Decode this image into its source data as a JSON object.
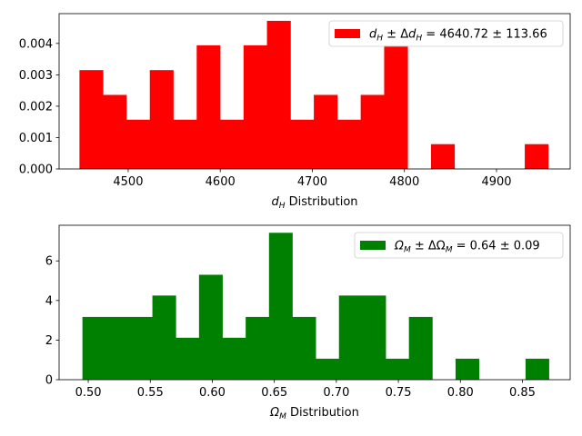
{
  "chart_data": [
    {
      "type": "bar",
      "xlabel": "$d_H$ Distribution",
      "xlabel_parts": {
        "var": "d",
        "sub": "H",
        "rest": " Distribution"
      },
      "xlim": [
        4425,
        4980
      ],
      "ylim": [
        0,
        0.00495
      ],
      "xticks": [
        4500,
        4600,
        4700,
        4800,
        4900
      ],
      "yticks": [
        0,
        0.001,
        0.002,
        0.003,
        0.004
      ],
      "ytick_labels": [
        "0.000",
        "0.001",
        "0.002",
        "0.003",
        "0.004"
      ],
      "bin_edges": [
        4447.1,
        4472.6,
        4498.0,
        4523.5,
        4548.9,
        4574.4,
        4599.8,
        4625.3,
        4650.7,
        4676.2,
        4701.6,
        4727.1,
        4752.5,
        4778.0,
        4803.4,
        4828.9,
        4854.3,
        4879.8,
        4905.2,
        4930.7,
        4956.1
      ],
      "values": [
        0.00315,
        0.00236,
        0.00157,
        0.00315,
        0.00157,
        0.00394,
        0.00157,
        0.00394,
        0.00472,
        0.00157,
        0.00236,
        0.00157,
        0.00236,
        0.00394,
        0,
        0.00079,
        0,
        0,
        0,
        0.00079
      ],
      "color": "#ff0000",
      "legend": {
        "position": "top-right",
        "label": "d_H ± Δd_H = 4640.72 ± 113.66",
        "label_parts": {
          "pre": "",
          "sym": "d",
          "sub": "H",
          "mid": " ± Δ",
          "sym2": "d",
          "sub2": "H",
          "post": " = 4640.72 ± 113.66"
        }
      }
    },
    {
      "type": "bar",
      "xlabel": "$\\Omega_M$ Distribution",
      "xlabel_parts": {
        "var": "Ω",
        "sub": "M",
        "rest": " Distribution"
      },
      "xlim": [
        0.4765,
        0.8885
      ],
      "ylim": [
        0,
        7.8
      ],
      "xticks": [
        0.5,
        0.55,
        0.6,
        0.65,
        0.7,
        0.75,
        0.8,
        0.85
      ],
      "xtick_labels": [
        "0.50",
        "0.55",
        "0.60",
        "0.65",
        "0.70",
        "0.75",
        "0.80",
        "0.85"
      ],
      "yticks": [
        0,
        2,
        4,
        6
      ],
      "ytick_labels": [
        "0",
        "2",
        "4",
        "6"
      ],
      "bin_edges": [
        0.4953,
        0.5141,
        0.5329,
        0.5517,
        0.5705,
        0.5893,
        0.6081,
        0.6269,
        0.6457,
        0.6645,
        0.6833,
        0.7021,
        0.7209,
        0.7397,
        0.7585,
        0.7773,
        0.7961,
        0.8149,
        0.8337,
        0.8525,
        0.8713
      ],
      "values": [
        3.17,
        3.17,
        3.17,
        4.25,
        2.12,
        5.3,
        2.12,
        3.17,
        7.42,
        3.17,
        1.06,
        4.25,
        4.25,
        1.06,
        3.17,
        0,
        1.06,
        0,
        0,
        1.06
      ],
      "color": "#008000",
      "legend": {
        "position": "top-right",
        "label": "Ω_M ± ΔΩ_M =   0.64 ± 0.09",
        "label_parts": {
          "pre": "",
          "sym": "Ω",
          "sub": "M",
          "mid": " ± ΔΩ",
          "sym2": "",
          "sub2": "M",
          "post": " =   0.64 ± 0.09"
        }
      }
    }
  ]
}
